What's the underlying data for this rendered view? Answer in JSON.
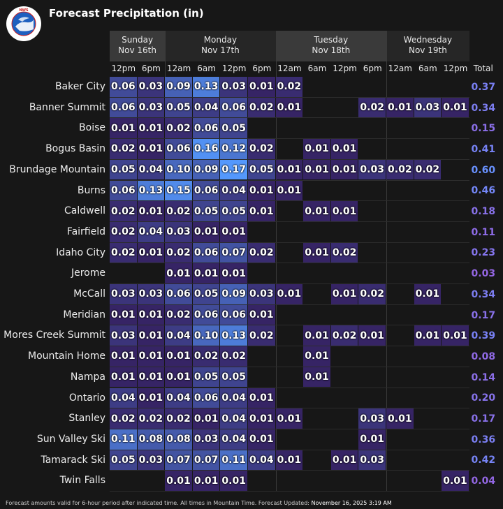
{
  "header": {
    "title": "Forecast Precipitation (in)",
    "logo_text": "NATIONAL WEATHER SERVICE"
  },
  "chart_data": {
    "type": "heatmap",
    "title": "Forecast Precipitation (in)",
    "days": [
      {
        "name": "Sunday",
        "date": "Nov 16th",
        "span": 2
      },
      {
        "name": "Monday",
        "date": "Nov 17th",
        "span": 4
      },
      {
        "name": "Tuesday",
        "date": "Nov 18th",
        "span": 4
      },
      {
        "name": "Wednesday",
        "date": "Nov 19th",
        "span": 3
      }
    ],
    "times": [
      "12pm",
      "6pm",
      "12am",
      "6am",
      "12pm",
      "6pm",
      "12am",
      "6am",
      "12pm",
      "6pm",
      "12am",
      "6am",
      "12pm"
    ],
    "total_label": "Total",
    "rows": [
      {
        "location": "Baker City",
        "values": [
          "0.06",
          "0.03",
          "0.09",
          "0.13",
          "0.03",
          "0.01",
          "0.02",
          "",
          "",
          "",
          "",
          "",
          ""
        ],
        "total": "0.37"
      },
      {
        "location": "Banner Summit",
        "values": [
          "0.06",
          "0.03",
          "0.05",
          "0.04",
          "0.06",
          "0.02",
          "0.01",
          "",
          "",
          "0.02",
          "0.01",
          "0.03",
          "0.01"
        ],
        "total": "0.34"
      },
      {
        "location": "Boise",
        "values": [
          "0.01",
          "0.01",
          "0.02",
          "0.06",
          "0.05",
          "",
          "",
          "",
          "",
          "",
          "",
          "",
          ""
        ],
        "total": "0.15"
      },
      {
        "location": "Bogus Basin",
        "values": [
          "0.02",
          "0.01",
          "0.06",
          "0.16",
          "0.12",
          "0.02",
          "",
          "0.01",
          "0.01",
          "",
          "",
          "",
          ""
        ],
        "total": "0.41"
      },
      {
        "location": "Brundage Mountain",
        "values": [
          "0.05",
          "0.04",
          "0.10",
          "0.09",
          "0.17",
          "0.05",
          "0.01",
          "0.01",
          "0.01",
          "0.03",
          "0.02",
          "0.02",
          ""
        ],
        "total": "0.60"
      },
      {
        "location": "Burns",
        "values": [
          "0.06",
          "0.13",
          "0.15",
          "0.06",
          "0.04",
          "0.01",
          "0.01",
          "",
          "",
          "",
          "",
          "",
          ""
        ],
        "total": "0.46"
      },
      {
        "location": "Caldwell",
        "values": [
          "0.02",
          "0.01",
          "0.02",
          "0.05",
          "0.05",
          "0.01",
          "",
          "0.01",
          "0.01",
          "",
          "",
          "",
          ""
        ],
        "total": "0.18"
      },
      {
        "location": "Fairfield",
        "values": [
          "0.02",
          "0.04",
          "0.03",
          "0.01",
          "0.01",
          "",
          "",
          "",
          "",
          "",
          "",
          "",
          ""
        ],
        "total": "0.11"
      },
      {
        "location": "Idaho City",
        "values": [
          "0.02",
          "0.01",
          "0.02",
          "0.06",
          "0.07",
          "0.02",
          "",
          "0.01",
          "0.02",
          "",
          "",
          "",
          ""
        ],
        "total": "0.23"
      },
      {
        "location": "Jerome",
        "values": [
          "",
          "",
          "0.01",
          "0.01",
          "0.01",
          "",
          "",
          "",
          "",
          "",
          "",
          "",
          ""
        ],
        "total": "0.03"
      },
      {
        "location": "McCall",
        "values": [
          "0.03",
          "0.03",
          "0.06",
          "0.05",
          "0.09",
          "0.03",
          "0.01",
          "",
          "0.01",
          "0.02",
          "",
          "0.01",
          ""
        ],
        "total": "0.34"
      },
      {
        "location": "Meridian",
        "values": [
          "0.01",
          "0.01",
          "0.02",
          "0.06",
          "0.06",
          "0.01",
          "",
          "",
          "",
          "",
          "",
          "",
          ""
        ],
        "total": "0.17"
      },
      {
        "location": "Mores Creek Summit",
        "values": [
          "0.03",
          "0.01",
          "0.04",
          "0.10",
          "0.13",
          "0.02",
          "",
          "0.01",
          "0.02",
          "0.01",
          "",
          "0.01",
          "0.01"
        ],
        "total": "0.39"
      },
      {
        "location": "Mountain Home",
        "values": [
          "0.01",
          "0.01",
          "0.01",
          "0.02",
          "0.02",
          "",
          "",
          "0.01",
          "",
          "",
          "",
          "",
          ""
        ],
        "total": "0.08"
      },
      {
        "location": "Nampa",
        "values": [
          "0.01",
          "0.01",
          "0.01",
          "0.05",
          "0.05",
          "",
          "",
          "0.01",
          "",
          "",
          "",
          "",
          ""
        ],
        "total": "0.14"
      },
      {
        "location": "Ontario",
        "values": [
          "0.04",
          "0.01",
          "0.04",
          "0.06",
          "0.04",
          "0.01",
          "",
          "",
          "",
          "",
          "",
          "",
          ""
        ],
        "total": "0.20"
      },
      {
        "location": "Stanley",
        "values": [
          "0.02",
          "0.02",
          "0.02",
          "0.01",
          "0.04",
          "0.01",
          "0.01",
          "",
          "",
          "0.03",
          "0.01",
          "",
          ""
        ],
        "total": "0.17"
      },
      {
        "location": "Sun Valley Ski",
        "values": [
          "0.11",
          "0.08",
          "0.08",
          "0.03",
          "0.04",
          "0.01",
          "",
          "",
          "",
          "0.01",
          "",
          "",
          ""
        ],
        "total": "0.36"
      },
      {
        "location": "Tamarack Ski",
        "values": [
          "0.05",
          "0.03",
          "0.07",
          "0.07",
          "0.11",
          "0.04",
          "0.01",
          "",
          "0.01",
          "0.03",
          "",
          "",
          ""
        ],
        "total": "0.42"
      },
      {
        "location": "Twin Falls",
        "values": [
          "",
          "",
          "0.01",
          "0.01",
          "0.01",
          "",
          "",
          "",
          "",
          "",
          "",
          "",
          "0.01"
        ],
        "total": "0.04"
      }
    ]
  },
  "footer": {
    "note": "Forecast amounts valid for 6-hour period after indicated time. All times in Mountain Time. Forecast Updated:",
    "updated": "November 16, 2025 3:19 AM"
  }
}
